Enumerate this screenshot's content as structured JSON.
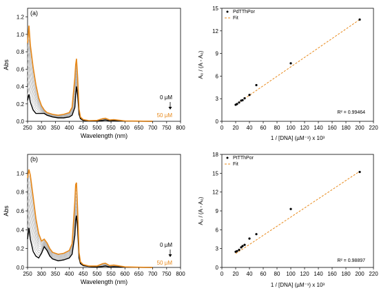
{
  "colors": {
    "orange": "#E8891A",
    "black": "#000000",
    "gray": "#B0B0B0"
  },
  "chart_data": [
    {
      "type": "line",
      "panel_label": "(a)",
      "xlabel": "Wavelength (nm)",
      "ylabel": "Abs",
      "xlim": [
        250,
        800
      ],
      "ylim": [
        0,
        1.3
      ],
      "xticks": [
        "250",
        "300",
        "350",
        "400",
        "450",
        "500",
        "550",
        "600",
        "650",
        "700",
        "750",
        "800"
      ],
      "yticks": [
        "0.0",
        "0.2",
        "0.4",
        "0.6",
        "0.8",
        "1.0",
        "1.2"
      ],
      "xtick_values": [
        250,
        300,
        350,
        400,
        450,
        500,
        550,
        600,
        650,
        700,
        750,
        800
      ],
      "ytick_values": [
        0,
        0.2,
        0.4,
        0.6,
        0.8,
        1.0,
        1.2
      ],
      "annotations": [
        "0 µM",
        "50 µM"
      ],
      "series": [
        {
          "color": "#000000",
          "x": [
            250,
            255,
            260,
            270,
            280,
            290,
            300,
            310,
            320,
            330,
            340,
            360,
            380,
            400,
            410,
            420,
            423,
            426,
            430,
            435,
            440,
            450,
            470,
            500,
            520,
            530,
            545,
            560,
            600,
            650,
            700
          ],
          "y": [
            0.24,
            0.31,
            0.22,
            0.13,
            0.09,
            0.09,
            0.09,
            0.09,
            0.07,
            0.06,
            0.05,
            0.04,
            0.04,
            0.05,
            0.07,
            0.16,
            0.3,
            0.4,
            0.3,
            0.08,
            0.03,
            0.01,
            0.005,
            0.004,
            0.01,
            0.015,
            0.006,
            0.01,
            0.002,
            0.001,
            0.0
          ]
        },
        {
          "color": "#E8891A",
          "x": [
            250,
            255,
            260,
            270,
            280,
            290,
            300,
            310,
            320,
            330,
            340,
            360,
            380,
            400,
            410,
            420,
            423,
            426,
            430,
            435,
            440,
            450,
            470,
            500,
            520,
            530,
            545,
            560,
            600,
            650,
            700
          ],
          "y": [
            0.9,
            1.1,
            0.88,
            0.62,
            0.42,
            0.27,
            0.18,
            0.13,
            0.1,
            0.09,
            0.08,
            0.07,
            0.08,
            0.1,
            0.16,
            0.5,
            0.65,
            0.72,
            0.5,
            0.14,
            0.05,
            0.02,
            0.008,
            0.01,
            0.03,
            0.035,
            0.015,
            0.02,
            0.005,
            0.002,
            0.0
          ]
        }
      ],
      "gray_count": 10
    },
    {
      "type": "scatter",
      "xlabel": "1 / [DNA] (µM⁻¹) x 10³",
      "ylabel": "A₀ / (A - A₀)",
      "xlim": [
        0,
        220
      ],
      "ylim": [
        0,
        15
      ],
      "xticks": [
        "0",
        "20",
        "40",
        "60",
        "80",
        "100",
        "120",
        "140",
        "160",
        "180",
        "200",
        "220"
      ],
      "yticks": [
        "0",
        "3",
        "6",
        "9",
        "12",
        "15"
      ],
      "xtick_values": [
        0,
        20,
        40,
        60,
        80,
        100,
        120,
        140,
        160,
        180,
        200,
        220
      ],
      "ytick_values": [
        0,
        3,
        6,
        9,
        12,
        15
      ],
      "legend": [
        "PdTThPor",
        "Fit"
      ],
      "annotations": [
        "R² = 0.99464"
      ],
      "points": {
        "x": [
          20,
          22,
          25,
          28,
          30,
          33,
          40,
          50,
          100,
          200
        ],
        "y": [
          2.2,
          2.3,
          2.5,
          2.75,
          2.8,
          3.05,
          3.5,
          4.8,
          7.7,
          13.5
        ]
      },
      "fit": {
        "x": [
          20,
          200
        ],
        "y": [
          2.2,
          13.5
        ]
      }
    },
    {
      "type": "line",
      "panel_label": "(b)",
      "xlabel": "Wavelength (nm)",
      "ylabel": "Abs",
      "xlim": [
        250,
        800
      ],
      "ylim": [
        0,
        1.2
      ],
      "xticks": [
        "250",
        "300",
        "350",
        "400",
        "450",
        "500",
        "550",
        "600",
        "650",
        "700",
        "750",
        "800"
      ],
      "yticks": [
        "0.0",
        "0.2",
        "0.4",
        "0.6",
        "0.8",
        "1.0"
      ],
      "xtick_values": [
        250,
        300,
        350,
        400,
        450,
        500,
        550,
        600,
        650,
        700,
        750,
        800
      ],
      "ytick_values": [
        0,
        0.2,
        0.4,
        0.6,
        0.8,
        1.0
      ],
      "annotations": [
        "0 µM",
        "50 µM"
      ],
      "series": [
        {
          "color": "#000000",
          "x": [
            250,
            255,
            260,
            270,
            280,
            290,
            300,
            310,
            320,
            330,
            340,
            360,
            380,
            400,
            410,
            420,
            423,
            426,
            430,
            435,
            440,
            450,
            470,
            500,
            520,
            530,
            545,
            560,
            600,
            650,
            700
          ],
          "y": [
            0.3,
            0.42,
            0.3,
            0.17,
            0.12,
            0.1,
            0.15,
            0.22,
            0.18,
            0.12,
            0.09,
            0.07,
            0.08,
            0.1,
            0.14,
            0.34,
            0.5,
            0.55,
            0.4,
            0.1,
            0.04,
            0.02,
            0.01,
            0.005,
            0.01,
            0.015,
            0.005,
            0.008,
            0.002,
            0.001,
            0.0
          ]
        },
        {
          "color": "#E8891A",
          "x": [
            250,
            255,
            260,
            270,
            280,
            290,
            300,
            310,
            320,
            330,
            340,
            360,
            380,
            400,
            410,
            420,
            423,
            426,
            430,
            435,
            440,
            450,
            470,
            500,
            520,
            530,
            545,
            560,
            600,
            650,
            700
          ],
          "y": [
            0.95,
            1.04,
            0.98,
            0.75,
            0.52,
            0.36,
            0.28,
            0.3,
            0.26,
            0.2,
            0.16,
            0.14,
            0.15,
            0.18,
            0.25,
            0.7,
            0.88,
            0.9,
            0.6,
            0.16,
            0.06,
            0.03,
            0.015,
            0.015,
            0.04,
            0.045,
            0.02,
            0.025,
            0.006,
            0.002,
            0.0
          ]
        }
      ],
      "gray_count": 10
    },
    {
      "type": "scatter",
      "xlabel": "1 / [DNA] (µM⁻¹) x 10³",
      "ylabel": "A₀ / (A - A₀)",
      "xlim": [
        0,
        220
      ],
      "ylim": [
        0,
        18
      ],
      "xticks": [
        "0",
        "20",
        "40",
        "60",
        "80",
        "100",
        "120",
        "140",
        "160",
        "180",
        "200",
        "220"
      ],
      "yticks": [
        "0",
        "3",
        "6",
        "9",
        "12",
        "15",
        "18"
      ],
      "xtick_values": [
        0,
        20,
        40,
        60,
        80,
        100,
        120,
        140,
        160,
        180,
        200,
        220
      ],
      "ytick_values": [
        0,
        3,
        6,
        9,
        12,
        15,
        18
      ],
      "legend": [
        "PtTThPor",
        "Fit"
      ],
      "annotations": [
        "R² = 0.98897"
      ],
      "points": {
        "x": [
          20,
          22,
          25,
          28,
          30,
          33,
          40,
          50,
          100,
          200
        ],
        "y": [
          2.5,
          2.6,
          2.8,
          3.2,
          3.4,
          3.6,
          4.6,
          5.3,
          9.3,
          15.2
        ]
      },
      "fit": {
        "x": [
          20,
          200
        ],
        "y": [
          2.2,
          15.3
        ]
      }
    }
  ]
}
